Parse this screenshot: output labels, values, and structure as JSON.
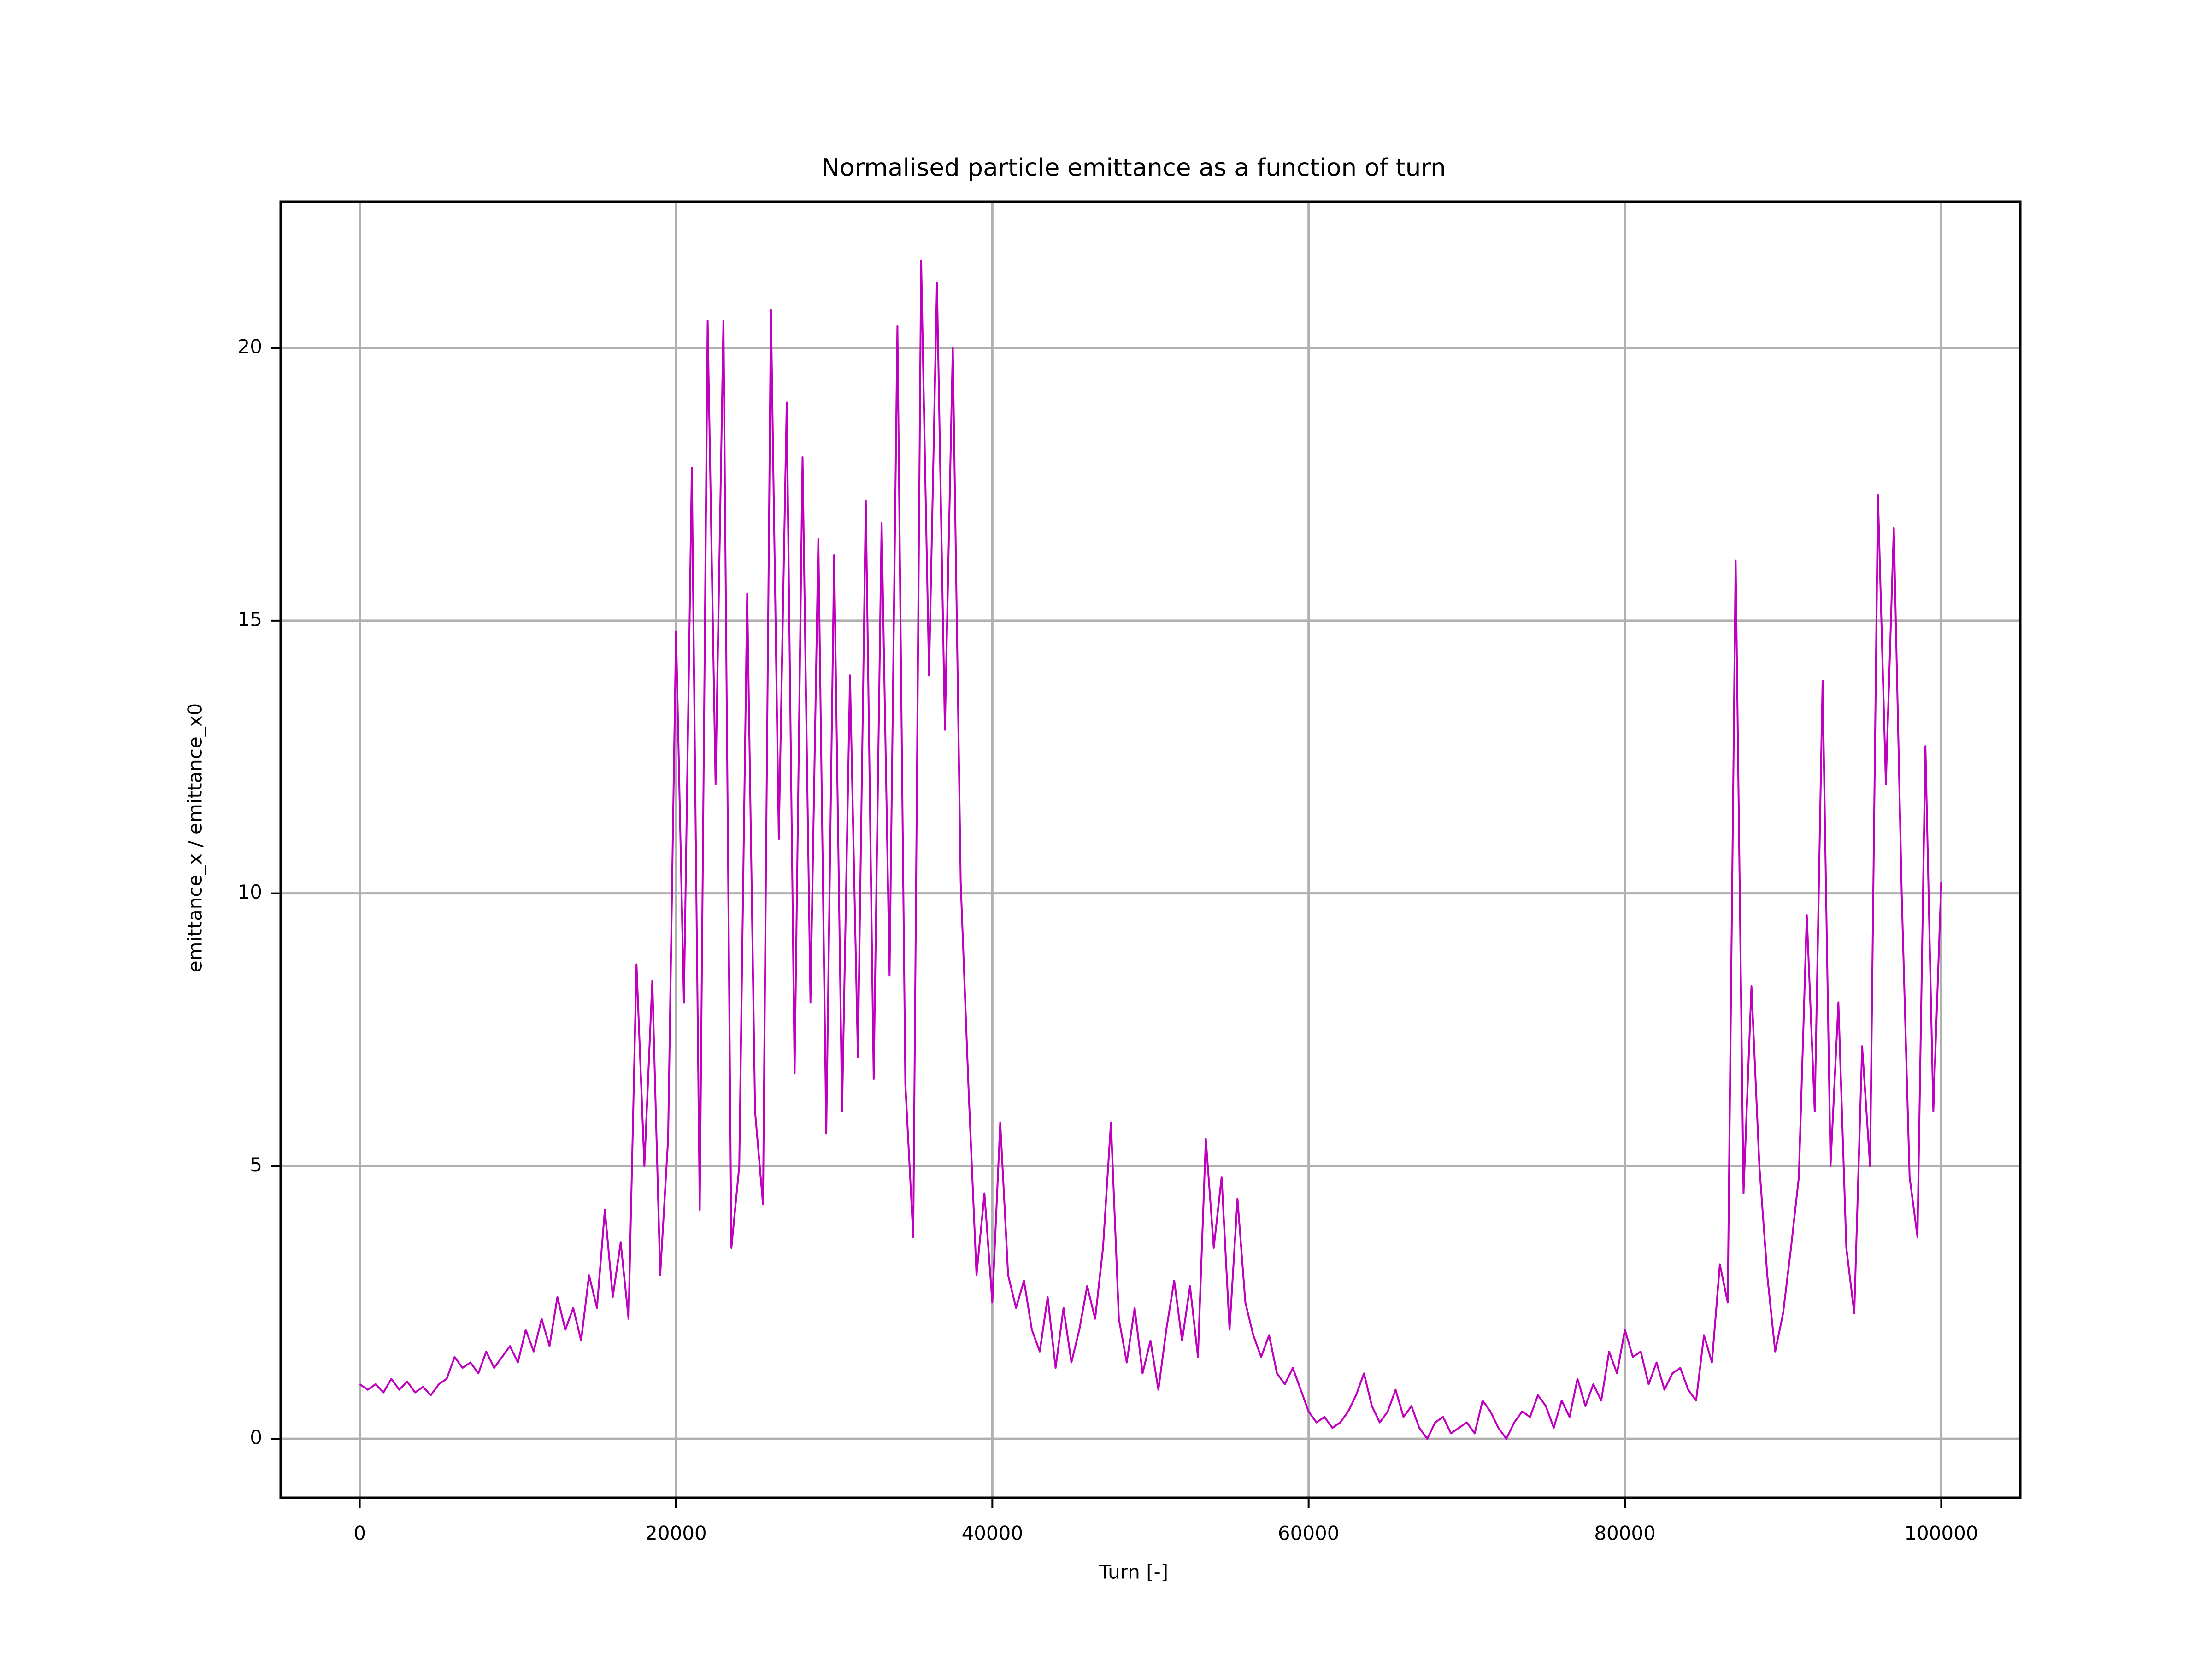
{
  "chart_data": {
    "type": "line",
    "title": "Normalised particle emittance as a function of turn",
    "x_label": "Turn [-]",
    "y_label": "emittance_x / emittance_x0",
    "color": "#bf00bf",
    "grid": true,
    "xlim": [
      -5000,
      105000
    ],
    "ylim": [
      -1.08,
      22.68
    ],
    "xticks": [
      0,
      20000,
      40000,
      60000,
      80000,
      100000
    ],
    "yticks": [
      0,
      5,
      10,
      15,
      20
    ],
    "x": [
      0,
      500,
      1000,
      1500,
      2000,
      2500,
      3000,
      3500,
      4000,
      4500,
      5000,
      5500,
      6000,
      6500,
      7000,
      7500,
      8000,
      8500,
      9000,
      9500,
      10000,
      10500,
      11000,
      11500,
      12000,
      12500,
      13000,
      13500,
      14000,
      14500,
      15000,
      15500,
      16000,
      16500,
      17000,
      17500,
      18000,
      18500,
      19000,
      19500,
      20000,
      20500,
      21000,
      21500,
      22000,
      22500,
      23000,
      23500,
      24000,
      24500,
      25000,
      25500,
      26000,
      26500,
      27000,
      27500,
      28000,
      28500,
      29000,
      29500,
      30000,
      30500,
      31000,
      31500,
      32000,
      32500,
      33000,
      33500,
      34000,
      34500,
      35000,
      35500,
      36000,
      36500,
      37000,
      37500,
      38000,
      38500,
      39000,
      39500,
      40000,
      40500,
      41000,
      41500,
      42000,
      42500,
      43000,
      43500,
      44000,
      44500,
      45000,
      45500,
      46000,
      46500,
      47000,
      47500,
      48000,
      48500,
      49000,
      49500,
      50000,
      50500,
      51000,
      51500,
      52000,
      52500,
      53000,
      53500,
      54000,
      54500,
      55000,
      55500,
      56000,
      56500,
      57000,
      57500,
      58000,
      58500,
      59000,
      59500,
      60000,
      60500,
      61000,
      61500,
      62000,
      62500,
      63000,
      63500,
      64000,
      64500,
      65000,
      65500,
      66000,
      66500,
      67000,
      67500,
      68000,
      68500,
      69000,
      69500,
      70000,
      70500,
      71000,
      71500,
      72000,
      72500,
      73000,
      73500,
      74000,
      74500,
      75000,
      75500,
      76000,
      76500,
      77000,
      77500,
      78000,
      78500,
      79000,
      79500,
      80000,
      80500,
      81000,
      81500,
      82000,
      82500,
      83000,
      83500,
      84000,
      84500,
      85000,
      85500,
      86000,
      86500,
      87000,
      87500,
      88000,
      88500,
      89000,
      89500,
      90000,
      90500,
      91000,
      91500,
      92000,
      92500,
      93000,
      93500,
      94000,
      94500,
      95000,
      95500,
      96000,
      96500,
      97000,
      97500,
      98000,
      98500,
      99000,
      99500,
      100000
    ],
    "values": [
      1.0,
      0.9,
      1.0,
      0.85,
      1.1,
      0.9,
      1.05,
      0.85,
      0.95,
      0.8,
      1.0,
      1.1,
      1.5,
      1.3,
      1.4,
      1.2,
      1.6,
      1.3,
      1.5,
      1.7,
      1.4,
      2.0,
      1.6,
      2.2,
      1.7,
      2.6,
      2.0,
      2.4,
      1.8,
      3.0,
      2.4,
      4.2,
      2.6,
      3.6,
      2.2,
      8.7,
      5.0,
      8.4,
      3.0,
      5.5,
      14.8,
      8.0,
      17.8,
      4.2,
      20.5,
      12.0,
      20.5,
      3.5,
      5.0,
      15.5,
      6.0,
      4.3,
      20.7,
      11.0,
      19.0,
      6.7,
      18.0,
      8.0,
      16.5,
      5.6,
      16.2,
      6.0,
      14.0,
      7.0,
      17.2,
      6.6,
      16.8,
      8.5,
      20.4,
      6.5,
      3.7,
      21.6,
      14.0,
      21.2,
      13.0,
      20.0,
      10.2,
      6.4,
      3.0,
      4.5,
      2.5,
      5.8,
      3.0,
      2.4,
      2.9,
      2.0,
      1.6,
      2.6,
      1.3,
      2.4,
      1.4,
      2.0,
      2.8,
      2.2,
      3.5,
      5.8,
      2.2,
      1.4,
      2.4,
      1.2,
      1.8,
      0.9,
      2.0,
      2.9,
      1.8,
      2.8,
      1.5,
      5.5,
      3.5,
      4.8,
      2.0,
      4.4,
      2.5,
      1.9,
      1.5,
      1.9,
      1.2,
      1.0,
      1.3,
      0.9,
      0.5,
      0.3,
      0.4,
      0.2,
      0.3,
      0.5,
      0.8,
      1.2,
      0.6,
      0.3,
      0.5,
      0.9,
      0.4,
      0.6,
      0.2,
      0.0,
      0.3,
      0.4,
      0.1,
      0.2,
      0.3,
      0.1,
      0.7,
      0.5,
      0.2,
      0.0,
      0.3,
      0.5,
      0.4,
      0.8,
      0.6,
      0.2,
      0.7,
      0.4,
      1.1,
      0.6,
      1.0,
      0.7,
      1.6,
      1.2,
      2.0,
      1.5,
      1.6,
      1.0,
      1.4,
      0.9,
      1.2,
      1.3,
      0.9,
      0.7,
      1.9,
      1.4,
      3.2,
      2.5,
      16.1,
      4.5,
      8.3,
      5.0,
      3.0,
      1.6,
      2.3,
      3.5,
      4.8,
      9.6,
      6.0,
      13.9,
      5.0,
      8.0,
      3.5,
      2.3,
      7.2,
      5.0,
      17.3,
      12.0,
      16.7,
      10.0,
      4.8,
      3.7,
      12.7,
      6.0,
      10.2
    ]
  }
}
